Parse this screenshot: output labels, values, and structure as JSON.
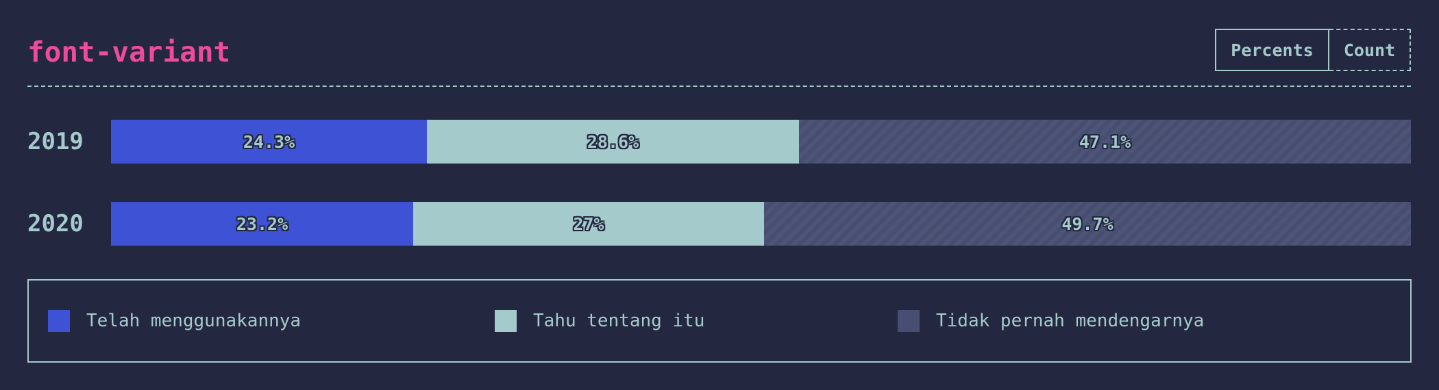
{
  "header": {
    "title": "font-variant",
    "toggle": {
      "percents_label": "Percents",
      "count_label": "Count",
      "selected": "Percents"
    }
  },
  "colors": {
    "background": "#232840",
    "text": "#a5cacc",
    "title": "#ee4b9b",
    "used": "#3e52d5",
    "heard": "#a5cacc",
    "never": "#474e71"
  },
  "chart_data": {
    "type": "bar",
    "orientation": "horizontal",
    "stacked": true,
    "normalized": true,
    "categories": [
      "2019",
      "2020"
    ],
    "series": [
      {
        "name": "Telah menggunakannya",
        "color": "#3e52d5",
        "values": [
          24.3,
          23.2
        ],
        "labels": [
          "24.3%",
          "23.2%"
        ]
      },
      {
        "name": "Tahu tentang itu",
        "color": "#a5cacc",
        "values": [
          28.6,
          27
        ],
        "labels": [
          "28.6%",
          "27%"
        ]
      },
      {
        "name": "Tidak pernah mendengarnya",
        "color": "#474e71",
        "values": [
          47.1,
          49.7
        ],
        "labels": [
          "47.1%",
          "49.7%"
        ]
      }
    ],
    "xlim": [
      0,
      100
    ],
    "legend_position": "bottom"
  }
}
